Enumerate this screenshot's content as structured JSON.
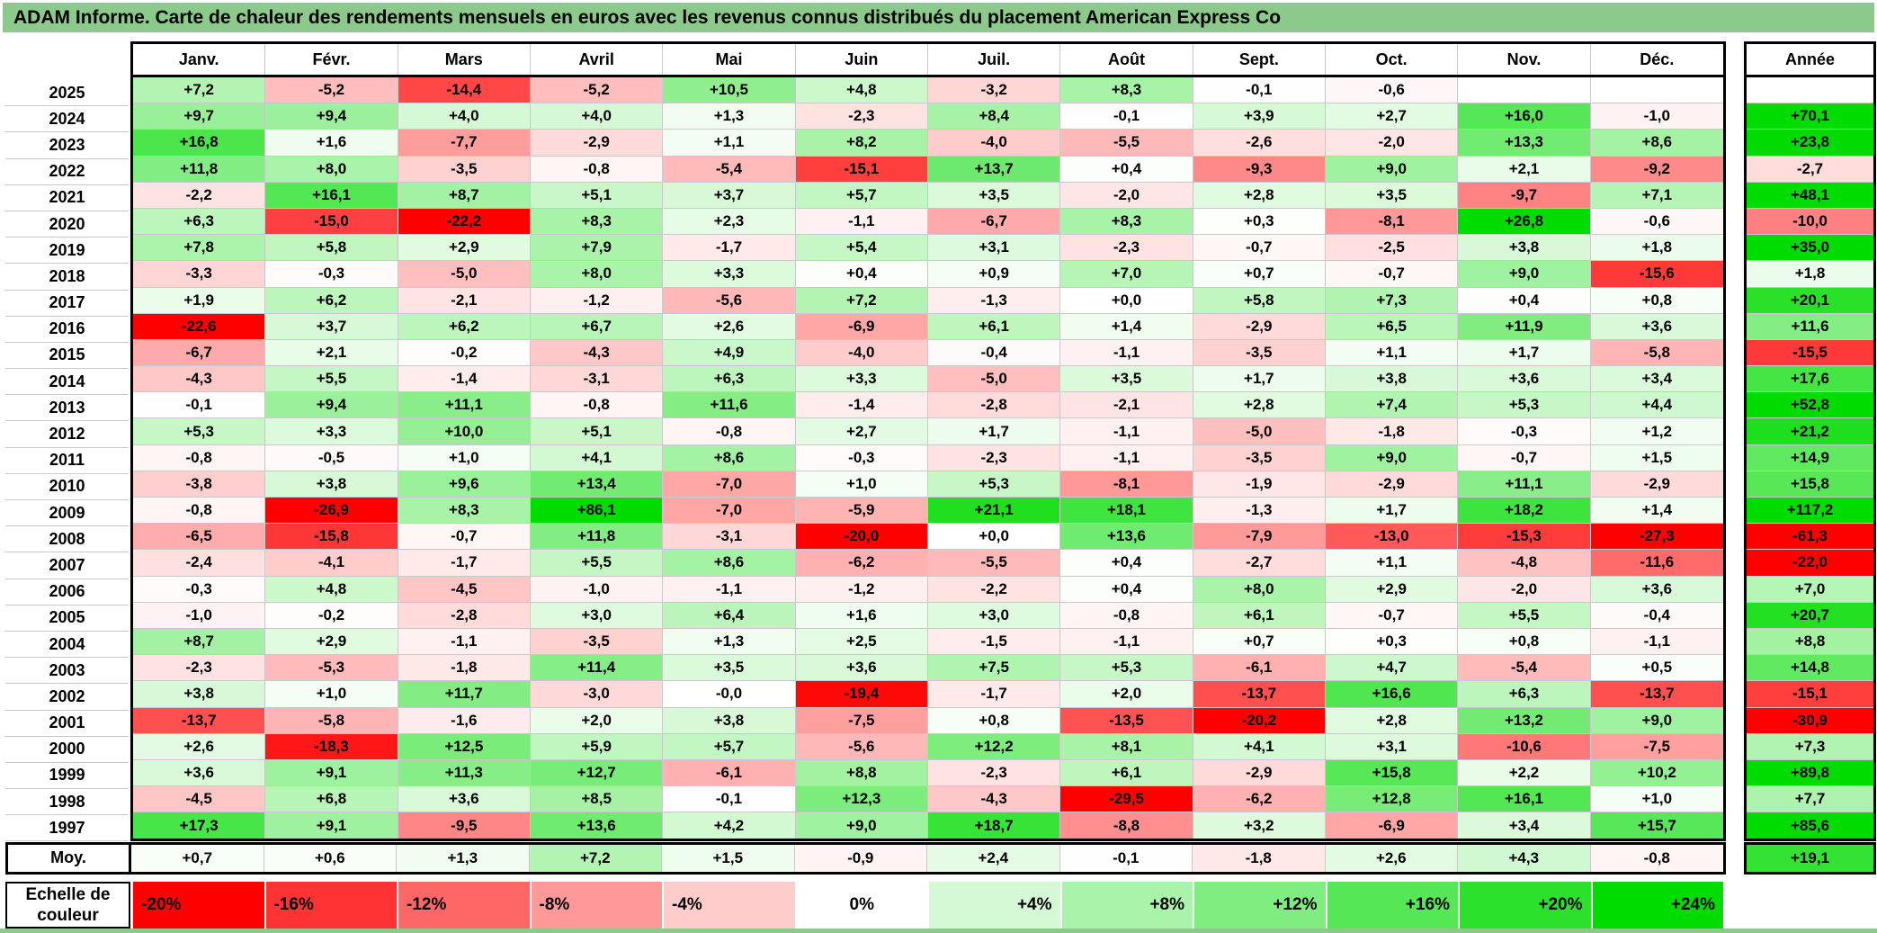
{
  "title": "ADAM Informe. Carte de chaleur des rendements mensuels en euros avec les revenus connus distribués du placement American Express Co",
  "colors": {
    "title_bar": "#8CCA8C",
    "grid_line": "#C9C9C9",
    "border": "#000000",
    "neutral": "#FFFFFF",
    "positive_max": "#00DB00",
    "negative_max": "#FF0000"
  },
  "color_scale": {
    "label_line1": "Echelle de",
    "label_line2": "couleur",
    "stops": [
      "-20%",
      "-16%",
      "-12%",
      "-8%",
      "-4%",
      "0%",
      "+4%",
      "+8%",
      "+12%",
      "+16%",
      "+20%",
      "+24%"
    ],
    "stop_values": [
      -20,
      -16,
      -12,
      -8,
      -4,
      0,
      4,
      8,
      12,
      16,
      20,
      24
    ]
  },
  "chart_data": {
    "type": "heatmap",
    "title": "ADAM Informe. Carte de chaleur des rendements mensuels en euros avec les revenus connus distribués du placement American Express Co",
    "x_labels": [
      "Janv.",
      "Févr.",
      "Mars",
      "Avril",
      "Mai",
      "Juin",
      "Juil.",
      "Août",
      "Sept.",
      "Oct.",
      "Nov.",
      "Déc."
    ],
    "annual_column_label": "Année",
    "color_mapping": {
      "zero": "#FFFFFF",
      "max_positive_at": 24,
      "max_negative_at": -20
    },
    "rows": [
      {
        "year": "2025",
        "monthly": [
          "+7,2",
          "-5,2",
          "-14,4",
          "-5,2",
          "+10,5",
          "+4,8",
          "-3,2",
          "+8,3",
          "-0,1",
          "-0,6",
          "",
          ""
        ],
        "annual": ""
      },
      {
        "year": "2024",
        "monthly": [
          "+9,7",
          "+9,4",
          "+4,0",
          "+4,0",
          "+1,3",
          "-2,3",
          "+8,4",
          "-0,1",
          "+3,9",
          "+2,7",
          "+16,0",
          "-1,0"
        ],
        "annual": "+70,1"
      },
      {
        "year": "2023",
        "monthly": [
          "+16,8",
          "+1,6",
          "-7,7",
          "-2,9",
          "+1,1",
          "+8,2",
          "-4,0",
          "-5,5",
          "-2,6",
          "-2,0",
          "+13,3",
          "+8,6"
        ],
        "annual": "+23,8"
      },
      {
        "year": "2022",
        "monthly": [
          "+11,8",
          "+8,0",
          "-3,5",
          "-0,8",
          "-5,4",
          "-15,1",
          "+13,7",
          "+0,4",
          "-9,3",
          "+9,0",
          "+2,1",
          "-9,2"
        ],
        "annual": "-2,7"
      },
      {
        "year": "2021",
        "monthly": [
          "-2,2",
          "+16,1",
          "+8,7",
          "+5,1",
          "+3,7",
          "+5,7",
          "+3,5",
          "-2,0",
          "+2,8",
          "+3,5",
          "-9,7",
          "+7,1"
        ],
        "annual": "+48,1"
      },
      {
        "year": "2020",
        "monthly": [
          "+6,3",
          "-15,0",
          "-22,2",
          "+8,3",
          "+2,3",
          "-1,1",
          "-6,7",
          "+8,3",
          "+0,3",
          "-8,1",
          "+26,8",
          "-0,6"
        ],
        "annual": "-10,0"
      },
      {
        "year": "2019",
        "monthly": [
          "+7,8",
          "+5,8",
          "+2,9",
          "+7,9",
          "-1,7",
          "+5,4",
          "+3,1",
          "-2,3",
          "-0,7",
          "-2,5",
          "+3,8",
          "+1,8"
        ],
        "annual": "+35,0"
      },
      {
        "year": "2018",
        "monthly": [
          "-3,3",
          "-0,3",
          "-5,0",
          "+8,0",
          "+3,3",
          "+0,4",
          "+0,9",
          "+7,0",
          "+0,7",
          "-0,7",
          "+9,0",
          "-15,6"
        ],
        "annual": "+1,8"
      },
      {
        "year": "2017",
        "monthly": [
          "+1,9",
          "+6,2",
          "-2,1",
          "-1,2",
          "-5,6",
          "+7,2",
          "-1,3",
          "+0,0",
          "+5,8",
          "+7,3",
          "+0,4",
          "+0,8"
        ],
        "annual": "+20,1"
      },
      {
        "year": "2016",
        "monthly": [
          "-22,6",
          "+3,7",
          "+6,2",
          "+6,7",
          "+2,6",
          "-6,9",
          "+6,1",
          "+1,4",
          "-2,9",
          "+6,5",
          "+11,9",
          "+3,6"
        ],
        "annual": "+11,6"
      },
      {
        "year": "2015",
        "monthly": [
          "-6,7",
          "+2,1",
          "-0,2",
          "-4,3",
          "+4,9",
          "-4,0",
          "-0,4",
          "-1,1",
          "-3,5",
          "+1,1",
          "+1,7",
          "-5,8"
        ],
        "annual": "-15,5"
      },
      {
        "year": "2014",
        "monthly": [
          "-4,3",
          "+5,5",
          "-1,4",
          "-3,1",
          "+6,3",
          "+3,3",
          "-5,0",
          "+3,5",
          "+1,7",
          "+3,8",
          "+3,6",
          "+3,4"
        ],
        "annual": "+17,6"
      },
      {
        "year": "2013",
        "monthly": [
          "-0,1",
          "+9,4",
          "+11,1",
          "-0,8",
          "+11,6",
          "-1,4",
          "-2,8",
          "-2,1",
          "+2,8",
          "+7,4",
          "+5,3",
          "+4,4"
        ],
        "annual": "+52,8"
      },
      {
        "year": "2012",
        "monthly": [
          "+5,3",
          "+3,3",
          "+10,0",
          "+5,1",
          "-0,8",
          "+2,7",
          "+1,7",
          "-1,1",
          "-5,0",
          "-1,8",
          "-0,3",
          "+1,2"
        ],
        "annual": "+21,2"
      },
      {
        "year": "2011",
        "monthly": [
          "-0,8",
          "-0,5",
          "+1,0",
          "+4,1",
          "+8,6",
          "-0,3",
          "-2,3",
          "-1,1",
          "-3,5",
          "+9,0",
          "-0,7",
          "+1,5"
        ],
        "annual": "+14,9"
      },
      {
        "year": "2010",
        "monthly": [
          "-3,8",
          "+3,8",
          "+9,6",
          "+13,4",
          "-7,0",
          "+1,0",
          "+5,3",
          "-8,1",
          "-1,9",
          "-2,9",
          "+11,1",
          "-2,9"
        ],
        "annual": "+15,8"
      },
      {
        "year": "2009",
        "monthly": [
          "-0,8",
          "-26,9",
          "+8,3",
          "+86,1",
          "-7,0",
          "-5,9",
          "+21,1",
          "+18,1",
          "-1,3",
          "+1,7",
          "+18,2",
          "+1,4"
        ],
        "annual": "+117,2"
      },
      {
        "year": "2008",
        "monthly": [
          "-6,5",
          "-15,8",
          "-0,7",
          "+11,8",
          "-3,1",
          "-20,0",
          "+0,0",
          "+13,6",
          "-7,9",
          "-13,0",
          "-15,3",
          "-27,3"
        ],
        "annual": "-61,3"
      },
      {
        "year": "2007",
        "monthly": [
          "-2,4",
          "-4,1",
          "-1,7",
          "+5,5",
          "+8,6",
          "-6,2",
          "-5,5",
          "+0,4",
          "-2,7",
          "+1,1",
          "-4,8",
          "-11,6"
        ],
        "annual": "-22,0"
      },
      {
        "year": "2006",
        "monthly": [
          "-0,3",
          "+4,8",
          "-4,5",
          "-1,0",
          "-1,1",
          "-1,2",
          "-2,2",
          "+0,4",
          "+8,0",
          "+2,9",
          "-2,0",
          "+3,6"
        ],
        "annual": "+7,0"
      },
      {
        "year": "2005",
        "monthly": [
          "-1,0",
          "-0,2",
          "-2,8",
          "+3,0",
          "+6,4",
          "+1,6",
          "+3,0",
          "-0,8",
          "+6,1",
          "-0,7",
          "+5,5",
          "-0,4"
        ],
        "annual": "+20,7"
      },
      {
        "year": "2004",
        "monthly": [
          "+8,7",
          "+2,9",
          "-1,1",
          "-3,5",
          "+1,3",
          "+2,5",
          "-1,5",
          "-1,1",
          "+0,7",
          "+0,3",
          "+0,8",
          "-1,1"
        ],
        "annual": "+8,8"
      },
      {
        "year": "2003",
        "monthly": [
          "-2,3",
          "-5,3",
          "-1,8",
          "+11,4",
          "+3,5",
          "+3,6",
          "+7,5",
          "+5,3",
          "-6,1",
          "+4,7",
          "-5,4",
          "+0,5"
        ],
        "annual": "+14,8"
      },
      {
        "year": "2002",
        "monthly": [
          "+3,8",
          "+1,0",
          "+11,7",
          "-3,0",
          "-0,0",
          "-19,4",
          "-1,7",
          "+2,0",
          "-13,7",
          "+16,6",
          "+6,3",
          "-13,7"
        ],
        "annual": "-15,1"
      },
      {
        "year": "2001",
        "monthly": [
          "-13,7",
          "-5,8",
          "-1,6",
          "+2,0",
          "+3,8",
          "-7,5",
          "+0,8",
          "-13,5",
          "-20,2",
          "+2,8",
          "+13,2",
          "+9,0"
        ],
        "annual": "-30,9"
      },
      {
        "year": "2000",
        "monthly": [
          "+2,6",
          "-18,3",
          "+12,5",
          "+5,9",
          "+5,7",
          "-5,6",
          "+12,2",
          "+8,1",
          "+4,1",
          "+3,1",
          "-10,6",
          "-7,5"
        ],
        "annual": "+7,3"
      },
      {
        "year": "1999",
        "monthly": [
          "+3,6",
          "+9,1",
          "+11,3",
          "+12,7",
          "-6,1",
          "+8,8",
          "-2,3",
          "+6,1",
          "-2,9",
          "+15,8",
          "+2,2",
          "+10,2"
        ],
        "annual": "+89,8"
      },
      {
        "year": "1998",
        "monthly": [
          "-4,5",
          "+6,8",
          "+3,6",
          "+8,5",
          "-0,1",
          "+12,3",
          "-4,3",
          "-29,5",
          "-6,2",
          "+12,8",
          "+16,1",
          "+1,0"
        ],
        "annual": "+7,7"
      },
      {
        "year": "1997",
        "monthly": [
          "+17,3",
          "+9,1",
          "-9,5",
          "+13,6",
          "+4,2",
          "+9,0",
          "+18,7",
          "-8,8",
          "+3,2",
          "-6,9",
          "+3,4",
          "+15,7"
        ],
        "annual": "+85,6"
      }
    ],
    "average_row": {
      "label": "Moy.",
      "monthly": [
        "+0,7",
        "+0,6",
        "+1,3",
        "+7,2",
        "+1,5",
        "-0,9",
        "+2,4",
        "-0,1",
        "-1,8",
        "+2,6",
        "+4,3",
        "-0,8"
      ],
      "annual": "+19,1"
    }
  }
}
